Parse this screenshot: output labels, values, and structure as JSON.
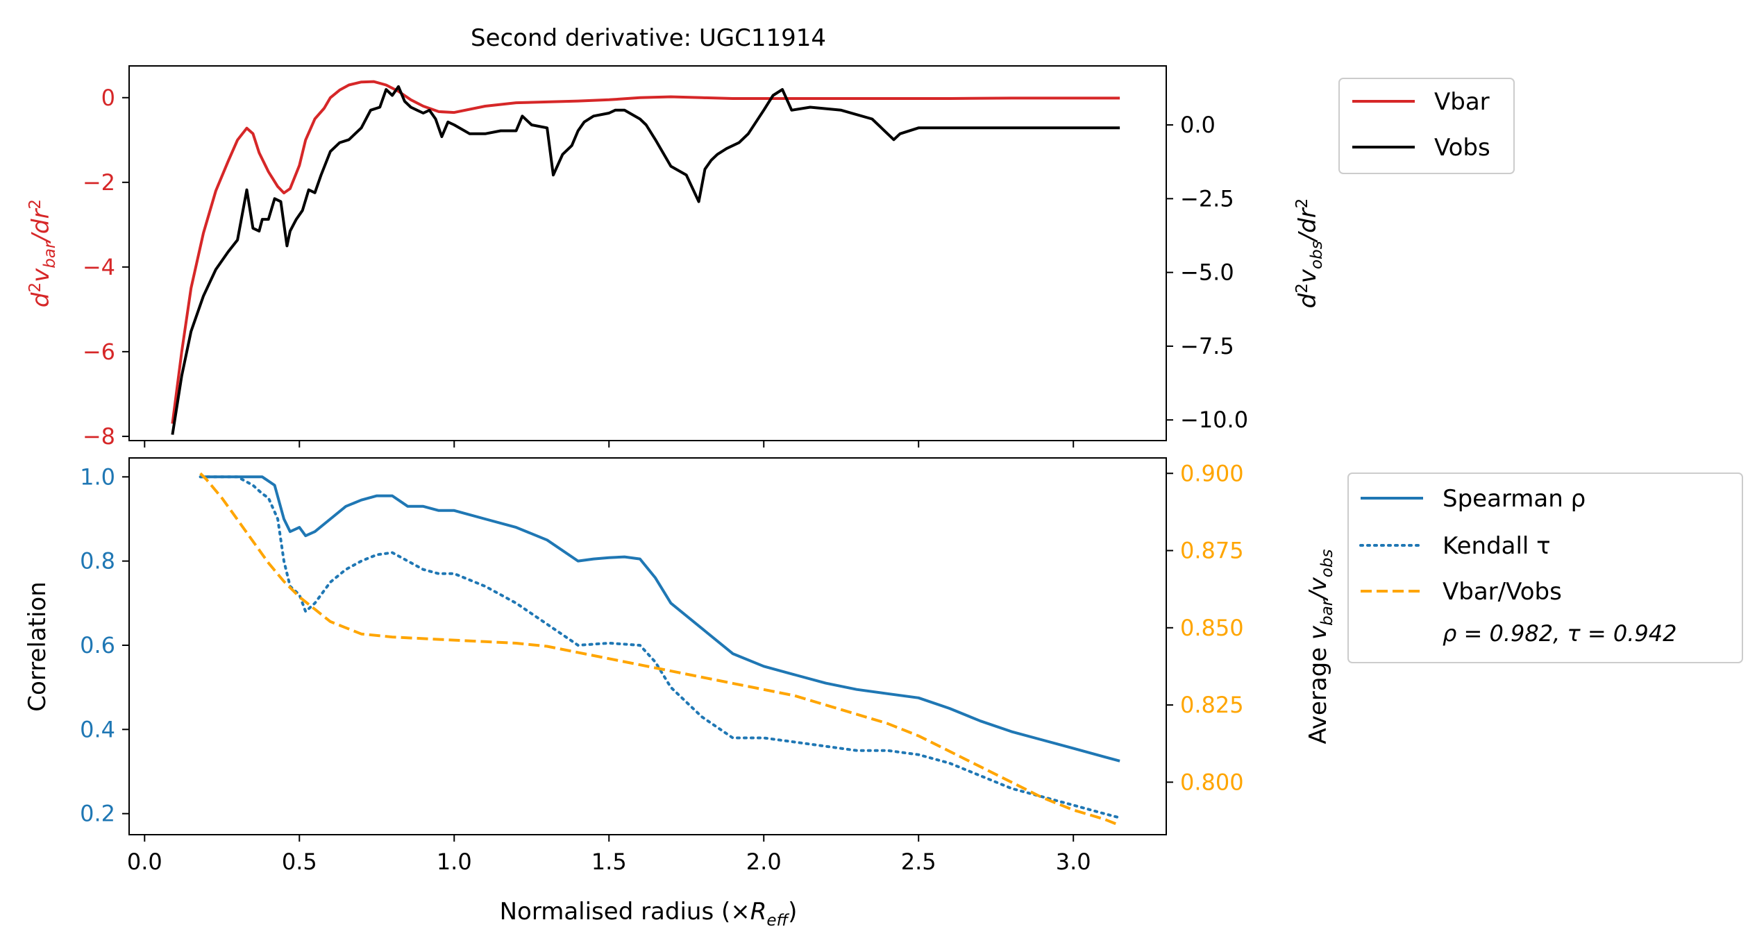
{
  "figure_title": "Second derivative: UGC11914",
  "colors": {
    "red": "#d62728",
    "black": "#000000",
    "blue": "#1f77b4",
    "orange": "#ffa500",
    "axis": "#000000"
  },
  "top_panel": {
    "left_ylabel": "d²v_bar/dr²",
    "right_ylabel": "d²v_obs/dr²",
    "left_yticks": [
      "0",
      "−2",
      "−4",
      "−6",
      "−8"
    ],
    "right_yticks": [
      "0.0",
      "−2.5",
      "−5.0",
      "−7.5",
      "−10.0"
    ],
    "legend": [
      "Vbar",
      "Vobs"
    ]
  },
  "bottom_panel": {
    "xlabel": "Normalised radius (×R_eff)",
    "xticks": [
      "0.0",
      "0.5",
      "1.0",
      "1.5",
      "2.0",
      "2.5",
      "3.0"
    ],
    "left_ylabel": "Correlation",
    "right_ylabel": "Average v_bar/v_obs",
    "left_yticks": [
      "1.0",
      "0.8",
      "0.6",
      "0.4",
      "0.2"
    ],
    "right_yticks": [
      "0.900",
      "0.875",
      "0.850",
      "0.825",
      "0.800"
    ],
    "legend": [
      "Spearman ρ",
      "Kendall τ",
      "Vbar/Vobs"
    ],
    "legend_stats": "ρ = 0.982, τ = 0.942"
  },
  "chart_data": [
    {
      "type": "line",
      "title": "Second derivative: UGC11914",
      "xlabel": "",
      "xlim": [
        -0.05,
        3.3
      ],
      "ylabel": "d²v_bar/dr²",
      "ylim": [
        -8.1,
        0.75
      ],
      "y2label": "d²v_obs/dr²",
      "y2lim": [
        -10.7,
        2.0
      ],
      "series": [
        {
          "name": "Vbar",
          "axis": "left",
          "color": "#d62728",
          "style": "solid",
          "x": [
            0.09,
            0.12,
            0.15,
            0.19,
            0.23,
            0.27,
            0.3,
            0.33,
            0.35,
            0.37,
            0.4,
            0.43,
            0.45,
            0.47,
            0.5,
            0.52,
            0.55,
            0.58,
            0.6,
            0.63,
            0.66,
            0.7,
            0.74,
            0.78,
            0.82,
            0.86,
            0.9,
            0.95,
            1.0,
            1.1,
            1.2,
            1.3,
            1.4,
            1.5,
            1.6,
            1.7,
            1.8,
            1.9,
            2.0,
            2.2,
            2.4,
            2.6,
            2.8,
            3.0,
            3.15
          ],
          "y": [
            -7.7,
            -6.0,
            -4.5,
            -3.2,
            -2.2,
            -1.5,
            -1.0,
            -0.72,
            -0.85,
            -1.3,
            -1.75,
            -2.1,
            -2.25,
            -2.15,
            -1.6,
            -1.0,
            -0.5,
            -0.25,
            0.0,
            0.18,
            0.3,
            0.37,
            0.38,
            0.3,
            0.15,
            -0.05,
            -0.2,
            -0.33,
            -0.35,
            -0.2,
            -0.12,
            -0.1,
            -0.08,
            -0.05,
            0.0,
            0.02,
            0.0,
            -0.02,
            -0.02,
            -0.02,
            -0.02,
            -0.02,
            -0.01,
            -0.01,
            -0.01
          ]
        },
        {
          "name": "Vobs",
          "axis": "right",
          "color": "#000000",
          "style": "solid",
          "x": [
            0.09,
            0.12,
            0.15,
            0.19,
            0.23,
            0.27,
            0.3,
            0.33,
            0.35,
            0.37,
            0.38,
            0.4,
            0.42,
            0.44,
            0.46,
            0.47,
            0.49,
            0.51,
            0.53,
            0.55,
            0.57,
            0.6,
            0.63,
            0.66,
            0.7,
            0.73,
            0.76,
            0.78,
            0.8,
            0.82,
            0.84,
            0.86,
            0.88,
            0.9,
            0.92,
            0.94,
            0.96,
            0.98,
            1.0,
            1.05,
            1.1,
            1.15,
            1.2,
            1.22,
            1.25,
            1.3,
            1.32,
            1.35,
            1.38,
            1.4,
            1.42,
            1.45,
            1.5,
            1.52,
            1.55,
            1.6,
            1.62,
            1.65,
            1.7,
            1.75,
            1.79,
            1.81,
            1.83,
            1.85,
            1.88,
            1.92,
            1.95,
            2.0,
            2.03,
            2.06,
            2.09,
            2.15,
            2.25,
            2.35,
            2.42,
            2.44,
            2.5,
            2.6,
            2.8,
            3.0,
            3.15
          ],
          "y": [
            -10.5,
            -8.5,
            -7.0,
            -5.8,
            -4.9,
            -4.3,
            -3.9,
            -2.2,
            -3.5,
            -3.6,
            -3.2,
            -3.2,
            -2.5,
            -2.6,
            -4.1,
            -3.6,
            -3.2,
            -2.9,
            -2.2,
            -2.3,
            -1.7,
            -0.9,
            -0.6,
            -0.5,
            -0.1,
            0.5,
            0.6,
            1.2,
            1.0,
            1.3,
            0.8,
            0.6,
            0.5,
            0.4,
            0.5,
            0.2,
            -0.4,
            0.1,
            0.0,
            -0.3,
            -0.3,
            -0.2,
            -0.2,
            0.3,
            0.0,
            -0.1,
            -1.7,
            -1.0,
            -0.7,
            -0.2,
            0.1,
            0.3,
            0.4,
            0.5,
            0.5,
            0.2,
            0.0,
            -0.5,
            -1.4,
            -1.7,
            -2.6,
            -1.5,
            -1.2,
            -1.0,
            -0.8,
            -0.6,
            -0.3,
            0.5,
            1.0,
            1.2,
            0.5,
            0.6,
            0.5,
            0.2,
            -0.5,
            -0.3,
            -0.1,
            -0.1,
            -0.1,
            -0.1,
            -0.1
          ]
        }
      ],
      "legend": "right-outside-top"
    },
    {
      "type": "line",
      "xlabel": "Normalised radius (×R_eff)",
      "xlim": [
        -0.05,
        3.3
      ],
      "ylabel": "Correlation",
      "ylim": [
        0.15,
        1.045
      ],
      "y2label": "Average v_bar/v_obs",
      "y2lim": [
        0.783,
        0.905
      ],
      "series": [
        {
          "name": "Spearman ρ",
          "axis": "left",
          "color": "#1f77b4",
          "style": "solid",
          "x": [
            0.18,
            0.3,
            0.38,
            0.42,
            0.45,
            0.47,
            0.5,
            0.52,
            0.55,
            0.6,
            0.65,
            0.7,
            0.75,
            0.8,
            0.85,
            0.9,
            0.95,
            1.0,
            1.1,
            1.2,
            1.3,
            1.4,
            1.45,
            1.5,
            1.55,
            1.6,
            1.65,
            1.7,
            1.8,
            1.9,
            2.0,
            2.1,
            2.2,
            2.3,
            2.4,
            2.5,
            2.6,
            2.7,
            2.8,
            2.9,
            3.0,
            3.1,
            3.15
          ],
          "y": [
            1.0,
            1.0,
            1.0,
            0.98,
            0.9,
            0.87,
            0.88,
            0.86,
            0.87,
            0.9,
            0.93,
            0.945,
            0.955,
            0.955,
            0.93,
            0.93,
            0.92,
            0.92,
            0.9,
            0.88,
            0.85,
            0.8,
            0.805,
            0.808,
            0.81,
            0.805,
            0.76,
            0.7,
            0.64,
            0.58,
            0.55,
            0.53,
            0.51,
            0.495,
            0.485,
            0.475,
            0.45,
            0.42,
            0.395,
            0.375,
            0.355,
            0.335,
            0.325
          ]
        },
        {
          "name": "Kendall τ",
          "axis": "left",
          "color": "#1f77b4",
          "style": "dotted",
          "x": [
            0.18,
            0.3,
            0.35,
            0.38,
            0.4,
            0.43,
            0.45,
            0.47,
            0.5,
            0.52,
            0.55,
            0.6,
            0.65,
            0.7,
            0.75,
            0.8,
            0.85,
            0.9,
            0.95,
            1.0,
            1.1,
            1.2,
            1.3,
            1.4,
            1.5,
            1.6,
            1.65,
            1.7,
            1.8,
            1.9,
            2.0,
            2.1,
            2.2,
            2.3,
            2.4,
            2.5,
            2.6,
            2.7,
            2.8,
            2.9,
            3.0,
            3.1,
            3.15
          ],
          "y": [
            1.0,
            1.0,
            0.98,
            0.96,
            0.95,
            0.9,
            0.8,
            0.74,
            0.72,
            0.68,
            0.7,
            0.75,
            0.78,
            0.8,
            0.815,
            0.82,
            0.8,
            0.78,
            0.77,
            0.77,
            0.74,
            0.7,
            0.65,
            0.6,
            0.605,
            0.6,
            0.56,
            0.5,
            0.43,
            0.38,
            0.38,
            0.37,
            0.36,
            0.35,
            0.35,
            0.34,
            0.32,
            0.29,
            0.26,
            0.24,
            0.22,
            0.2,
            0.19
          ]
        },
        {
          "name": "Vbar/Vobs",
          "axis": "right",
          "color": "#ffa500",
          "style": "dashed",
          "x": [
            0.18,
            0.2,
            0.25,
            0.3,
            0.35,
            0.4,
            0.45,
            0.5,
            0.55,
            0.6,
            0.65,
            0.7,
            0.8,
            0.9,
            1.0,
            1.1,
            1.2,
            1.3,
            1.4,
            1.5,
            1.6,
            1.7,
            1.8,
            1.9,
            2.0,
            2.1,
            2.2,
            2.3,
            2.4,
            2.5,
            2.6,
            2.7,
            2.8,
            2.9,
            3.0,
            3.1,
            3.15
          ],
          "y": [
            0.9,
            0.898,
            0.892,
            0.885,
            0.878,
            0.871,
            0.865,
            0.86,
            0.856,
            0.852,
            0.85,
            0.848,
            0.847,
            0.8465,
            0.846,
            0.8455,
            0.845,
            0.844,
            0.842,
            0.84,
            0.838,
            0.836,
            0.834,
            0.832,
            0.83,
            0.828,
            0.825,
            0.822,
            0.819,
            0.815,
            0.81,
            0.805,
            0.8,
            0.795,
            0.791,
            0.788,
            0.786
          ]
        }
      ],
      "annotation": "ρ = 0.982, τ = 0.942",
      "legend": "right-outside-top"
    }
  ]
}
